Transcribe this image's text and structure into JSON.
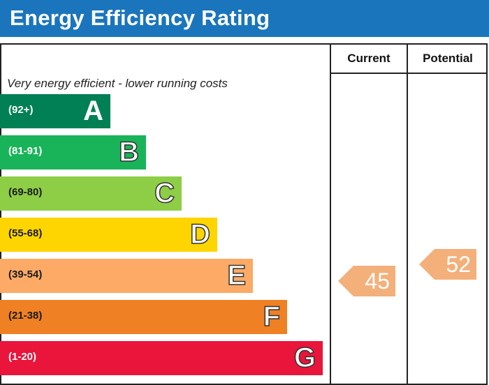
{
  "title": "Energy Efficiency Rating",
  "column_headers": {
    "current": "Current",
    "potential": "Potential"
  },
  "chart_data": {
    "type": "bar",
    "title": "Energy Efficiency Rating",
    "subtitle": "Very energy efficient - lower running costs",
    "bands": [
      {
        "letter": "A",
        "range": "(92+)",
        "color": "#008054"
      },
      {
        "letter": "B",
        "range": "(81-91)",
        "color": "#19b459"
      },
      {
        "letter": "C",
        "range": "(69-80)",
        "color": "#8dce46"
      },
      {
        "letter": "D",
        "range": "(55-68)",
        "color": "#ffd500"
      },
      {
        "letter": "E",
        "range": "(39-54)",
        "color": "#fcaa65"
      },
      {
        "letter": "F",
        "range": "(21-38)",
        "color": "#ef8023"
      },
      {
        "letter": "G",
        "range": "(1-20)",
        "color": "#e9153b"
      }
    ],
    "current": {
      "value": "45",
      "band": "E",
      "color": "#f3b07a"
    },
    "potential": {
      "value": "52",
      "band": "E",
      "color": "#f3b07a"
    }
  }
}
